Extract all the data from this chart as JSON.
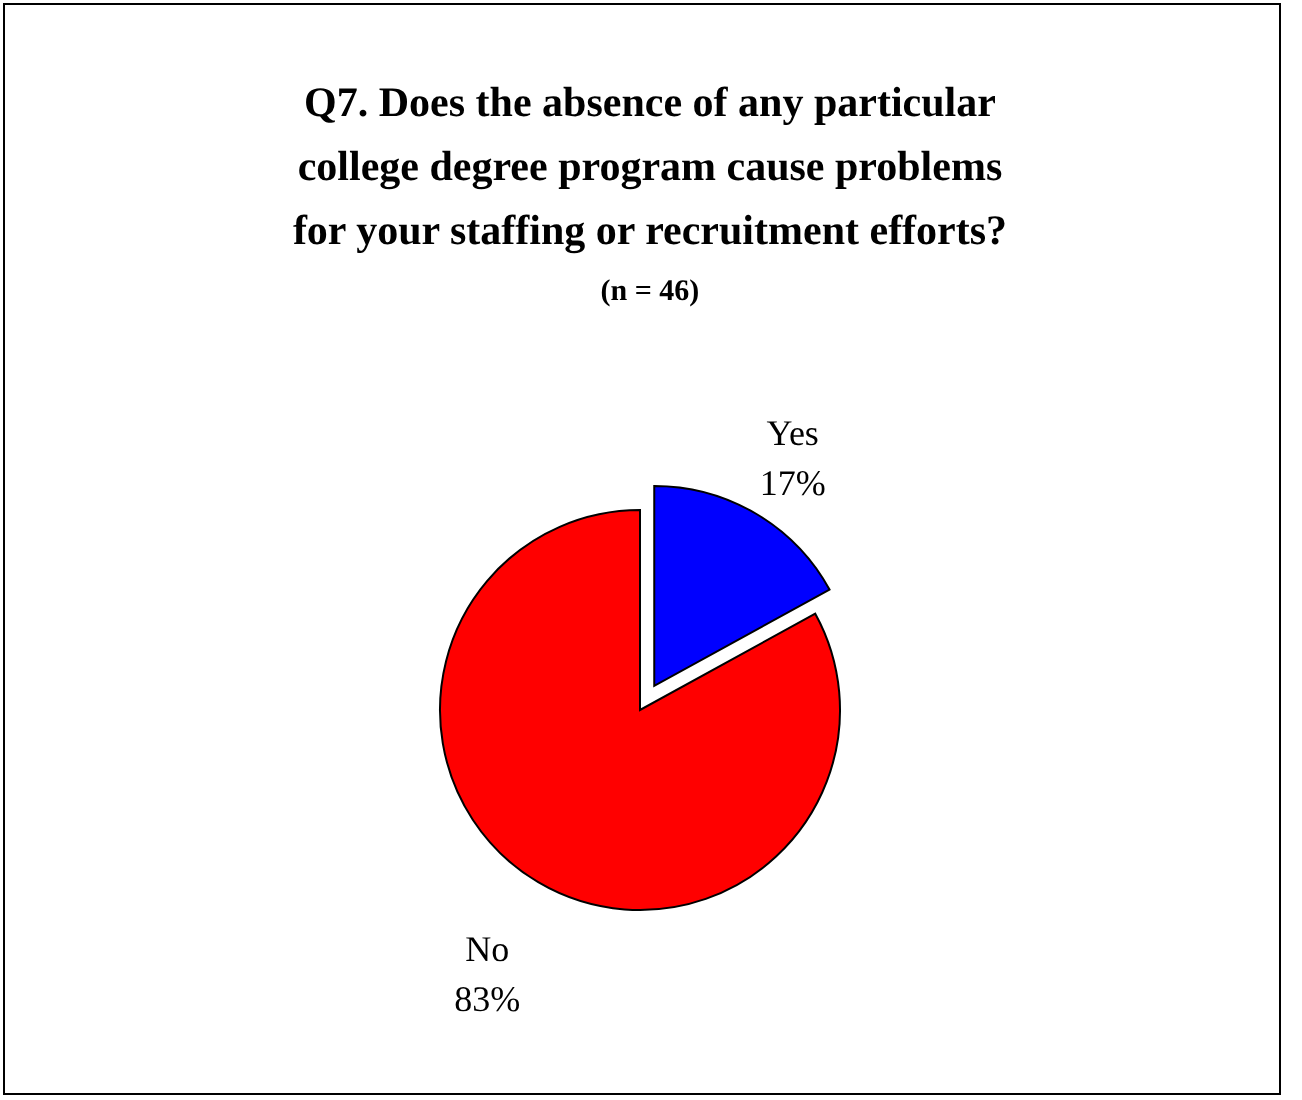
{
  "chart_data": {
    "type": "pie",
    "title": "Q7. Does the absence of any particular\ncollege degree program cause problems\nfor your staffing or recruitment efforts?",
    "subtitle": "(n = 46)",
    "categories": [
      "Yes",
      "No"
    ],
    "values": [
      17,
      83
    ],
    "colors": [
      "#0000ff",
      "#ff0000"
    ],
    "value_labels": [
      "17%",
      "83%"
    ]
  }
}
